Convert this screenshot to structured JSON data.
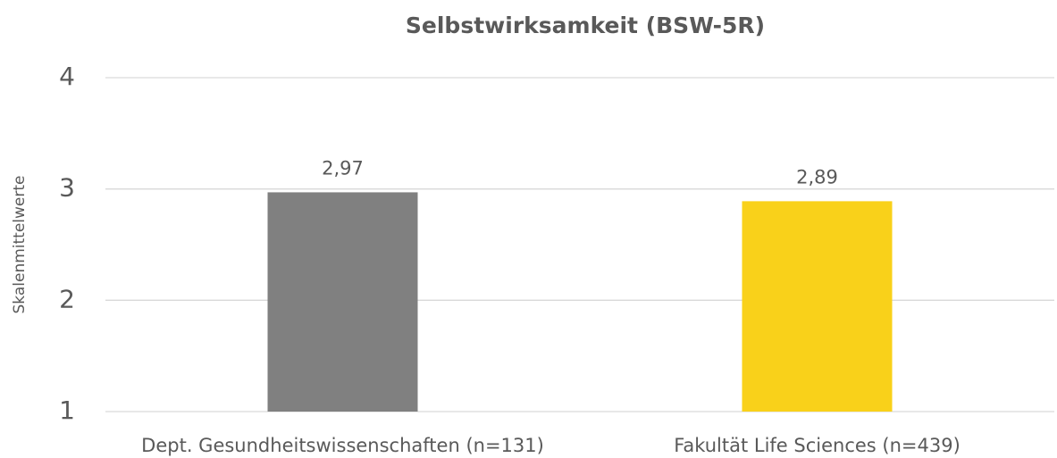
{
  "chart_data": {
    "type": "bar",
    "title": "Selbstwirksamkeit (BSW-5R)",
    "y_label": "Skalenmittelwerte",
    "categories": [
      "Dept. Gesundheitswissenschaften (n=131)",
      "Fakultät Life Sciences (n=439)"
    ],
    "values": [
      2.97,
      2.89
    ],
    "value_labels": [
      "2,97",
      "2,89"
    ],
    "colors": [
      "#808080",
      "#f9d11a"
    ],
    "ylim": [
      1,
      4
    ],
    "yticks": [
      1,
      2,
      3,
      4
    ],
    "grid": true
  }
}
